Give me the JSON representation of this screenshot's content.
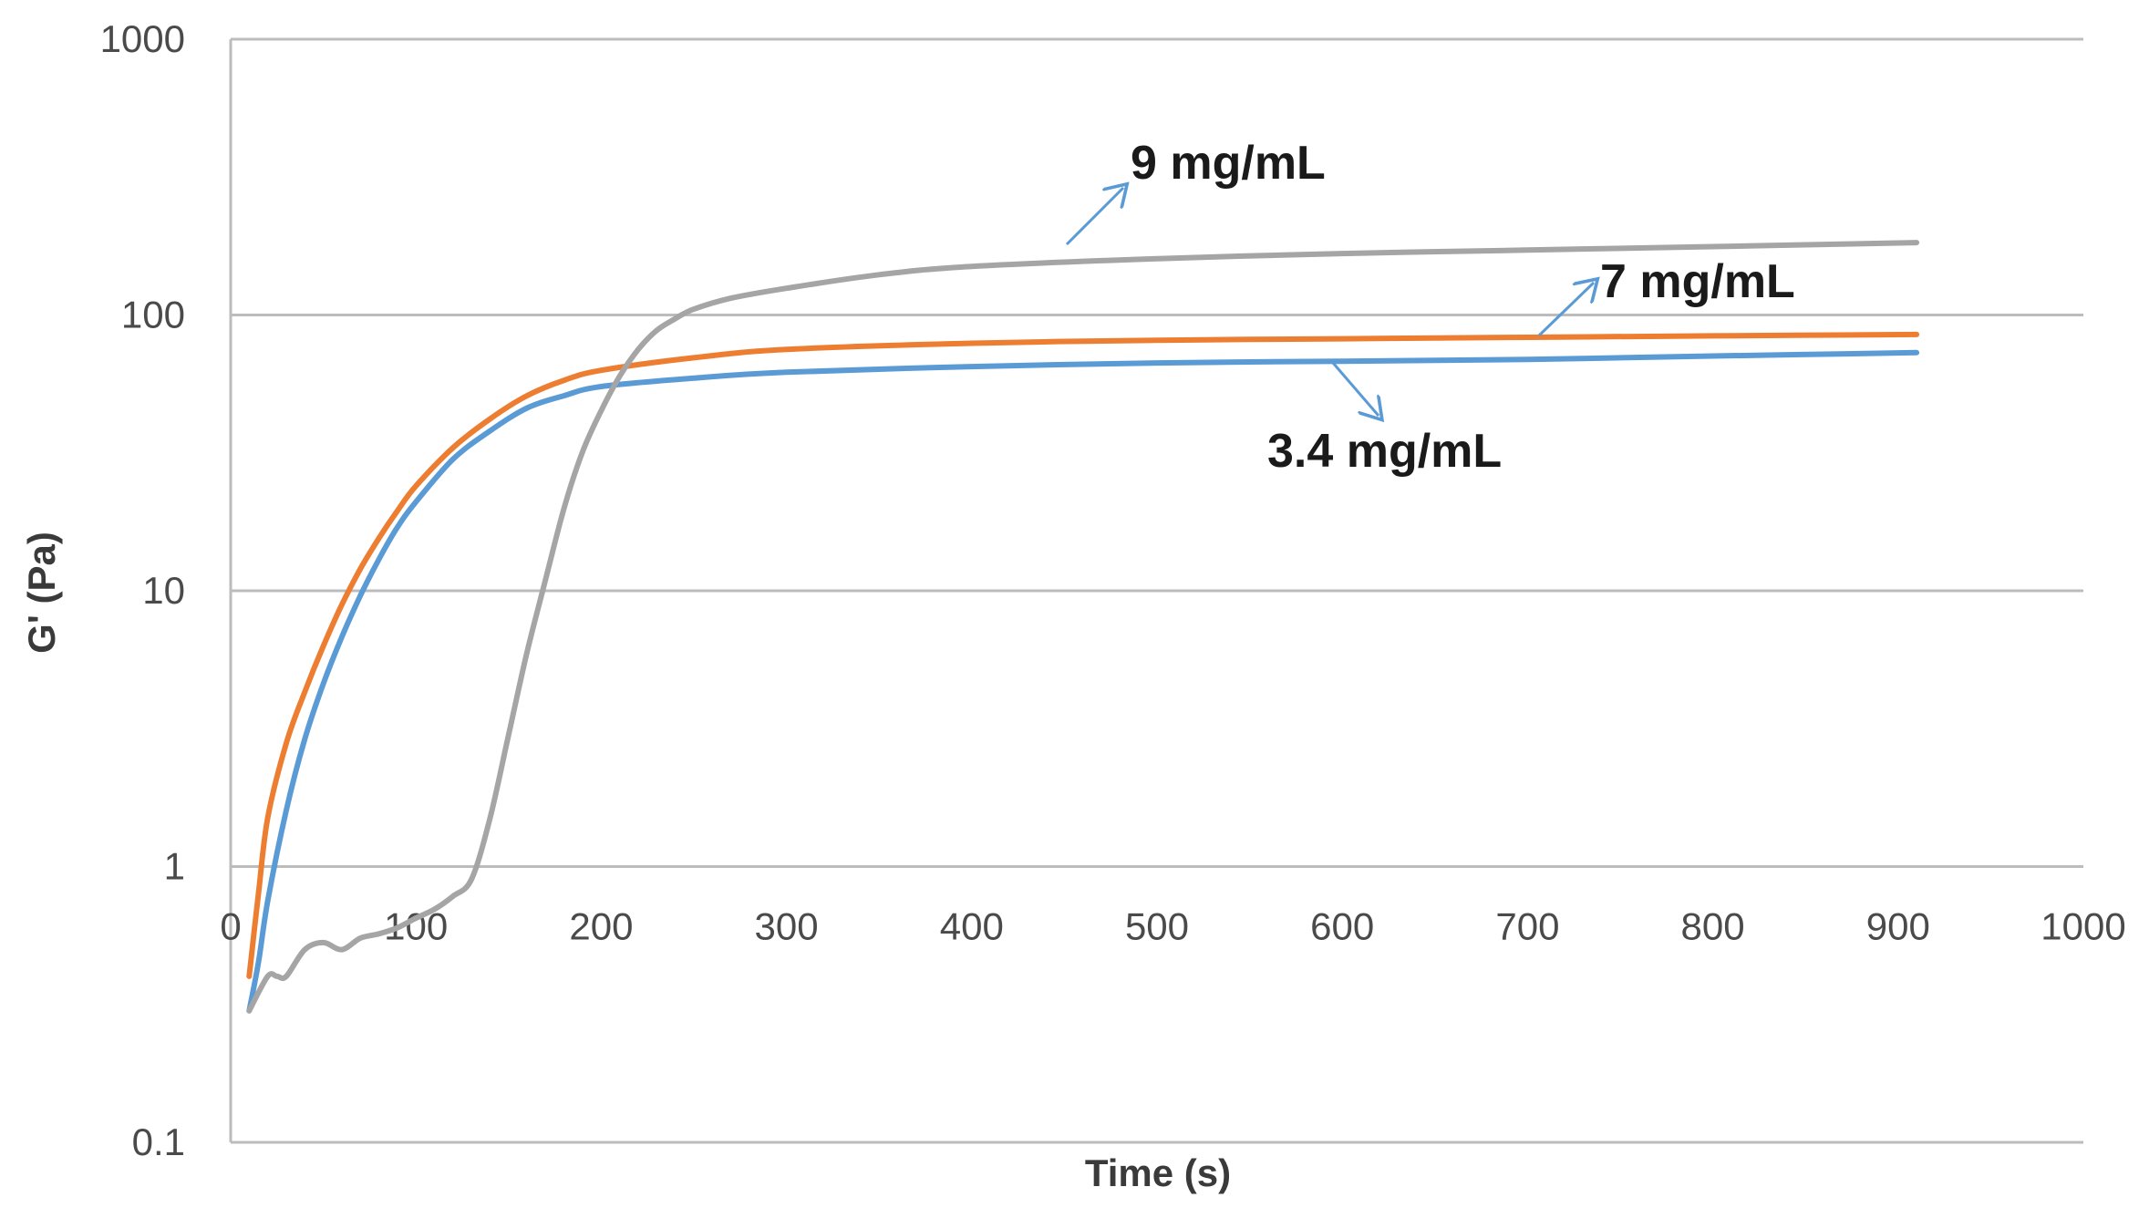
{
  "chart_data": {
    "type": "line",
    "title": "",
    "xlabel": "Time (s)",
    "ylabel": "G' (Pa)",
    "xlim": [
      0,
      1000
    ],
    "ylim": [
      0.1,
      1000
    ],
    "yscale": "log",
    "x_ticks": [
      "0",
      "100",
      "200",
      "300",
      "400",
      "500",
      "600",
      "700",
      "800",
      "900",
      "1000"
    ],
    "y_ticks": [
      "0.1",
      "1",
      "10",
      "100",
      "1000"
    ],
    "grid": "horizontal",
    "series": [
      {
        "name": "3.4 mg/mL",
        "color": "#5b9bd5",
        "x": [
          10,
          15,
          20,
          30,
          40,
          50,
          60,
          70,
          80,
          90,
          100,
          120,
          140,
          160,
          180,
          200,
          250,
          300,
          400,
          500,
          600,
          700,
          800,
          910
        ],
        "y": [
          0.3,
          0.45,
          0.75,
          1.6,
          2.9,
          4.6,
          6.8,
          9.6,
          13,
          17,
          21,
          30,
          38,
          46,
          51,
          55,
          59,
          62,
          65,
          67,
          68,
          69,
          71,
          73
        ]
      },
      {
        "name": "7 mg/mL",
        "color": "#ed7d31",
        "x": [
          10,
          15,
          20,
          30,
          40,
          50,
          60,
          70,
          80,
          90,
          100,
          120,
          140,
          160,
          180,
          200,
          250,
          300,
          400,
          500,
          600,
          700,
          800,
          910
        ],
        "y": [
          0.4,
          0.8,
          1.5,
          2.8,
          4.3,
          6.3,
          8.9,
          12,
          15.5,
          19.5,
          24,
          33,
          42,
          51,
          58,
          63,
          70,
          75,
          79,
          81,
          82,
          83,
          84,
          85
        ]
      },
      {
        "name": "9 mg/mL",
        "color": "#a5a5a5",
        "x": [
          10,
          20,
          25,
          30,
          40,
          50,
          60,
          70,
          80,
          90,
          100,
          110,
          120,
          130,
          140,
          150,
          160,
          170,
          180,
          190,
          200,
          210,
          220,
          230,
          240,
          250,
          270,
          300,
          350,
          400,
          500,
          600,
          700,
          800,
          910
        ],
        "y": [
          0.3,
          0.4,
          0.4,
          0.4,
          0.5,
          0.53,
          0.5,
          0.55,
          0.57,
          0.6,
          0.65,
          0.7,
          0.78,
          0.9,
          1.5,
          3.0,
          6.0,
          11,
          20,
          32,
          45,
          60,
          75,
          88,
          97,
          105,
          115,
          125,
          140,
          150,
          160,
          167,
          172,
          177,
          183
        ]
      }
    ],
    "annotations": [
      {
        "text": "9 mg/mL",
        "series": "9 mg/mL"
      },
      {
        "text": "7 mg/mL",
        "series": "7 mg/mL"
      },
      {
        "text": "3.4 mg/mL",
        "series": "3.4 mg/mL"
      }
    ],
    "colors": {
      "grid": "#bcbcbc",
      "arrow": "#5b9bd5"
    }
  }
}
